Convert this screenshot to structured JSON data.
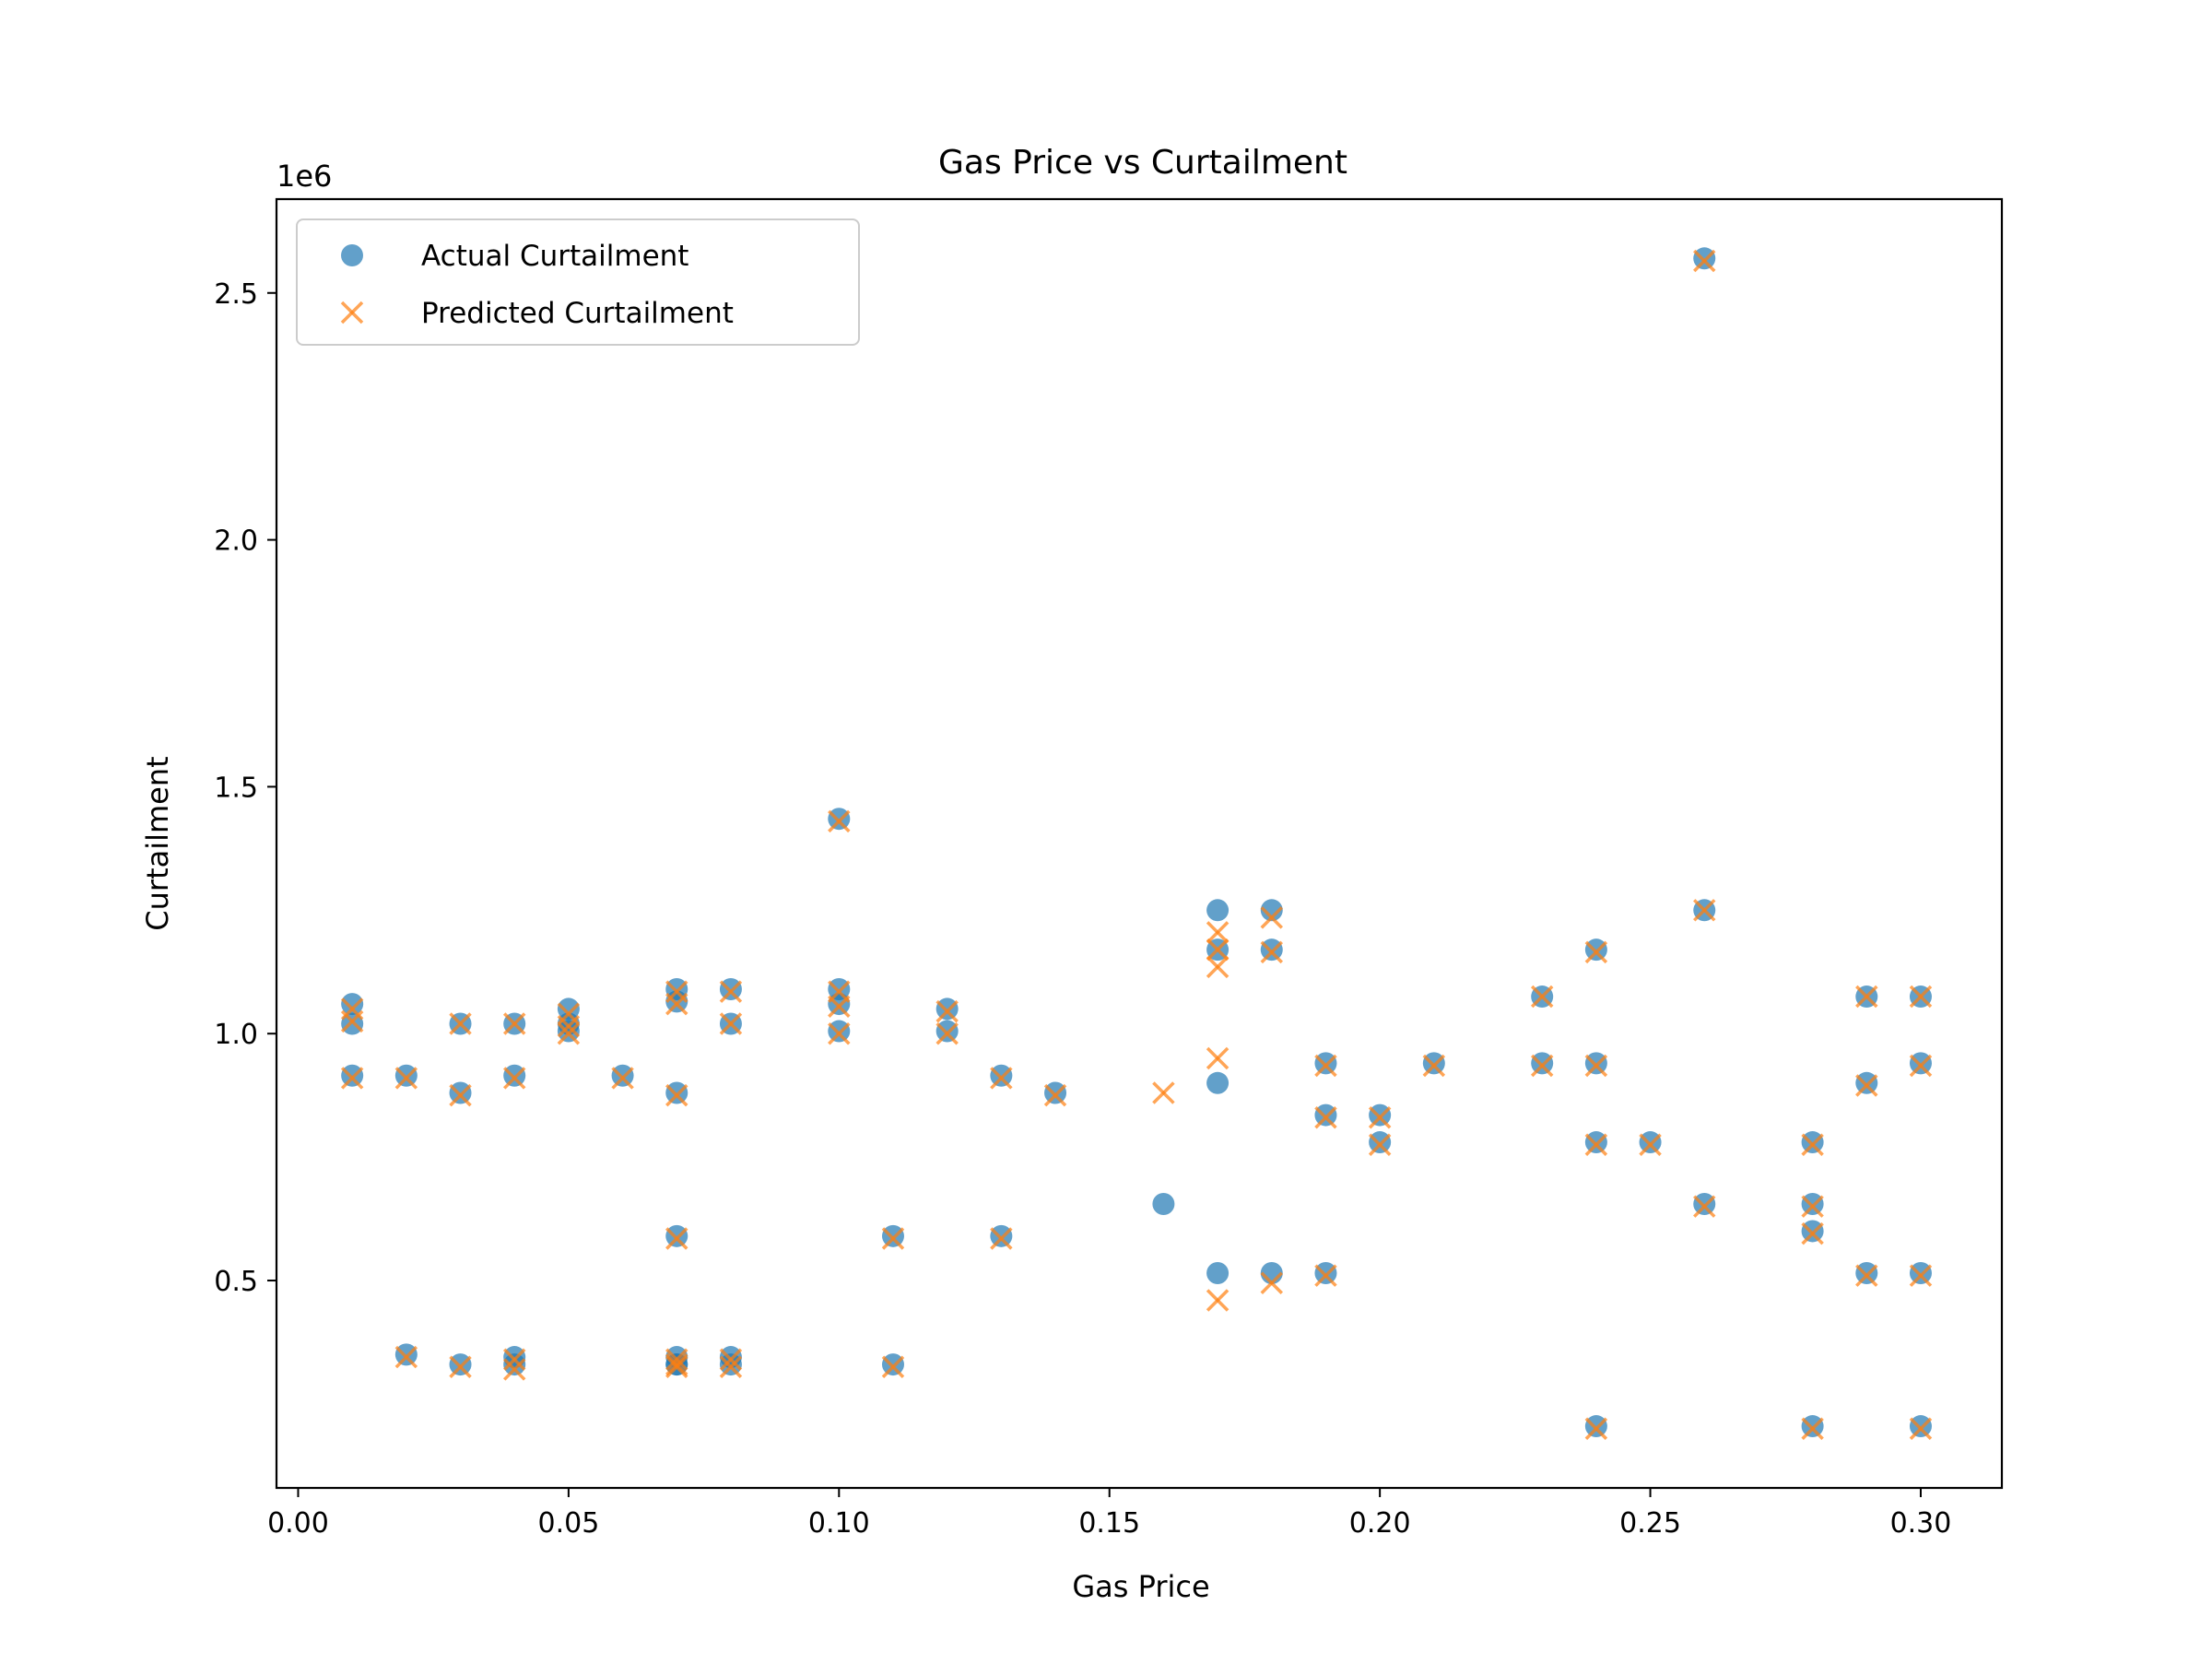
{
  "colors": {
    "actual": "#1f77b4",
    "predicted": "#ff7f0e",
    "axes": "#000000",
    "legend_border": "#cccccc",
    "background": "#ffffff"
  },
  "chart_data": {
    "type": "scatter",
    "title": "Gas Price vs Curtailment",
    "xlabel": "Gas Price",
    "ylabel": "Curtailment",
    "y_offset_text": "1e6",
    "xlim": [
      -0.004,
      0.315
    ],
    "ylim": [
      0.08,
      2.69
    ],
    "xticks": [
      0.0,
      0.05,
      0.1,
      0.15,
      0.2,
      0.25,
      0.3
    ],
    "xtick_labels": [
      "0.00",
      "0.05",
      "0.10",
      "0.15",
      "0.20",
      "0.25",
      "0.30"
    ],
    "yticks": [
      0.5,
      1.0,
      1.5,
      2.0,
      2.5
    ],
    "ytick_labels": [
      "0.5",
      "1.0",
      "1.5",
      "2.0",
      "2.5"
    ],
    "grid": false,
    "legend_position": "upper-left",
    "series": [
      {
        "name": "Actual Curtailment",
        "marker": "circle",
        "color": "#1f77b4",
        "x": [
          0.01,
          0.01,
          0.01,
          0.02,
          0.02,
          0.03,
          0.03,
          0.03,
          0.04,
          0.04,
          0.04,
          0.04,
          0.05,
          0.05,
          0.05,
          0.06,
          0.07,
          0.07,
          0.07,
          0.07,
          0.07,
          0.07,
          0.07,
          0.08,
          0.08,
          0.08,
          0.08,
          0.1,
          0.1,
          0.1,
          0.1,
          0.11,
          0.11,
          0.12,
          0.12,
          0.13,
          0.13,
          0.14,
          0.16,
          0.17,
          0.17,
          0.17,
          0.17,
          0.18,
          0.18,
          0.18,
          0.19,
          0.19,
          0.19,
          0.2,
          0.2,
          0.21,
          0.23,
          0.23,
          0.24,
          0.24,
          0.24,
          0.24,
          0.25,
          0.26,
          0.26,
          0.26,
          0.28,
          0.28,
          0.28,
          0.28,
          0.29,
          0.29,
          0.29,
          0.3,
          0.3,
          0.3,
          0.3
        ],
        "y": [
          1.06,
          1.02,
          0.915,
          0.915,
          0.35,
          1.02,
          0.88,
          0.33,
          1.02,
          0.915,
          0.345,
          0.33,
          1.05,
          1.02,
          1.005,
          0.915,
          1.09,
          1.065,
          0.88,
          0.59,
          0.345,
          0.33,
          0.33,
          1.09,
          1.02,
          0.345,
          0.33,
          1.435,
          1.09,
          1.06,
          1.005,
          0.59,
          0.33,
          1.05,
          1.005,
          0.915,
          0.59,
          0.88,
          0.655,
          1.25,
          1.17,
          0.9,
          0.515,
          1.25,
          1.17,
          0.515,
          0.94,
          0.835,
          0.515,
          0.835,
          0.78,
          0.94,
          1.075,
          0.94,
          1.17,
          0.94,
          0.78,
          0.205,
          0.78,
          2.57,
          1.25,
          0.655,
          0.78,
          0.655,
          0.6,
          0.205,
          1.075,
          0.9,
          0.515,
          1.075,
          0.94,
          0.515,
          0.205
        ]
      },
      {
        "name": "Predicted Curtailment",
        "marker": "x",
        "color": "#ff7f0e",
        "x": [
          0.01,
          0.01,
          0.01,
          0.02,
          0.02,
          0.03,
          0.03,
          0.03,
          0.04,
          0.04,
          0.04,
          0.04,
          0.05,
          0.05,
          0.05,
          0.06,
          0.07,
          0.07,
          0.07,
          0.07,
          0.07,
          0.07,
          0.07,
          0.08,
          0.08,
          0.08,
          0.08,
          0.1,
          0.1,
          0.1,
          0.1,
          0.11,
          0.11,
          0.12,
          0.12,
          0.13,
          0.13,
          0.14,
          0.16,
          0.17,
          0.17,
          0.17,
          0.17,
          0.17,
          0.18,
          0.18,
          0.18,
          0.19,
          0.19,
          0.19,
          0.2,
          0.2,
          0.21,
          0.23,
          0.23,
          0.24,
          0.24,
          0.24,
          0.24,
          0.25,
          0.26,
          0.26,
          0.26,
          0.28,
          0.28,
          0.28,
          0.28,
          0.29,
          0.29,
          0.29,
          0.3,
          0.3,
          0.3,
          0.3
        ],
        "y": [
          1.05,
          1.025,
          0.91,
          0.91,
          0.345,
          1.02,
          0.875,
          0.325,
          1.02,
          0.91,
          0.34,
          0.32,
          1.04,
          1.015,
          1.0,
          0.91,
          1.085,
          1.06,
          0.875,
          0.585,
          0.34,
          0.33,
          0.325,
          1.085,
          1.02,
          0.34,
          0.325,
          1.43,
          1.085,
          1.055,
          1.0,
          0.585,
          0.325,
          1.045,
          1.0,
          0.91,
          0.585,
          0.875,
          0.88,
          1.205,
          1.17,
          1.135,
          0.95,
          0.46,
          1.235,
          1.165,
          0.495,
          0.935,
          0.83,
          0.51,
          0.83,
          0.775,
          0.935,
          1.075,
          0.935,
          1.165,
          0.935,
          0.775,
          0.2,
          0.775,
          2.565,
          1.25,
          0.65,
          0.775,
          0.65,
          0.595,
          0.2,
          1.075,
          0.895,
          0.51,
          1.075,
          0.935,
          0.51,
          0.2
        ]
      }
    ]
  }
}
